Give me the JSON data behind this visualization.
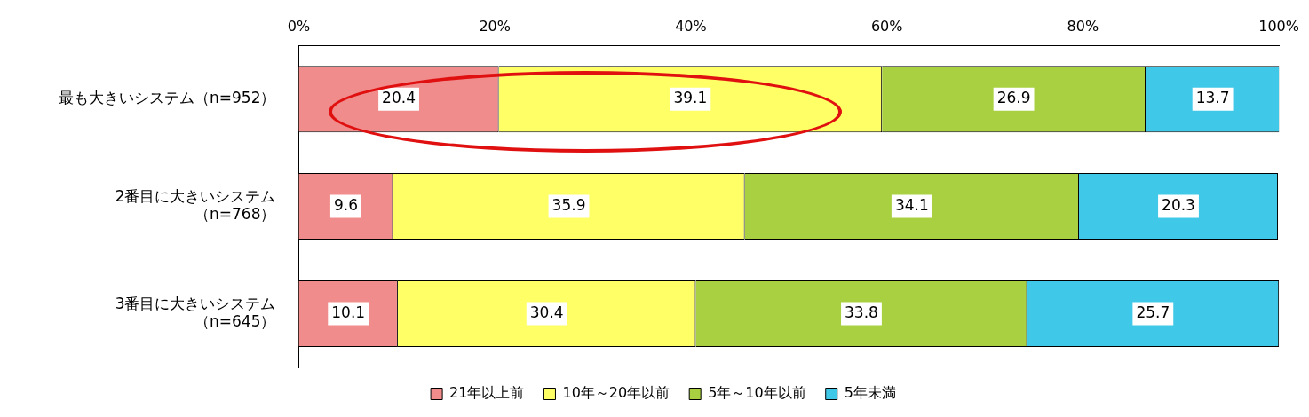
{
  "chart_data": {
    "type": "bar",
    "orientation": "horizontal",
    "stacked": true,
    "categories": [
      "最も大きいシステム（n=952）",
      "2番目に大きいシステム（n=768）",
      "3番目に大きいシステム（n=645）"
    ],
    "series": [
      {
        "name": "21年以上前",
        "color": "#f08c8c",
        "values": [
          20.4,
          9.6,
          10.1
        ]
      },
      {
        "name": "10年～20年以前",
        "color": "#ffff66",
        "values": [
          39.1,
          35.9,
          30.4
        ]
      },
      {
        "name": "5年～10年以前",
        "color": "#a8d040",
        "values": [
          26.9,
          34.1,
          33.8
        ]
      },
      {
        "name": "5年未満",
        "color": "#40c8e8",
        "values": [
          13.7,
          20.3,
          25.7
        ]
      }
    ],
    "xlim": [
      0,
      100
    ],
    "xticks": [
      {
        "value": 0,
        "label": "0%"
      },
      {
        "value": 20,
        "label": "20%"
      },
      {
        "value": 40,
        "label": "40%"
      },
      {
        "value": 60,
        "label": "60%"
      },
      {
        "value": 80,
        "label": "80%"
      },
      {
        "value": 100,
        "label": "100%"
      }
    ],
    "grid": false,
    "legend": "bottom",
    "data_labels": true
  }
}
